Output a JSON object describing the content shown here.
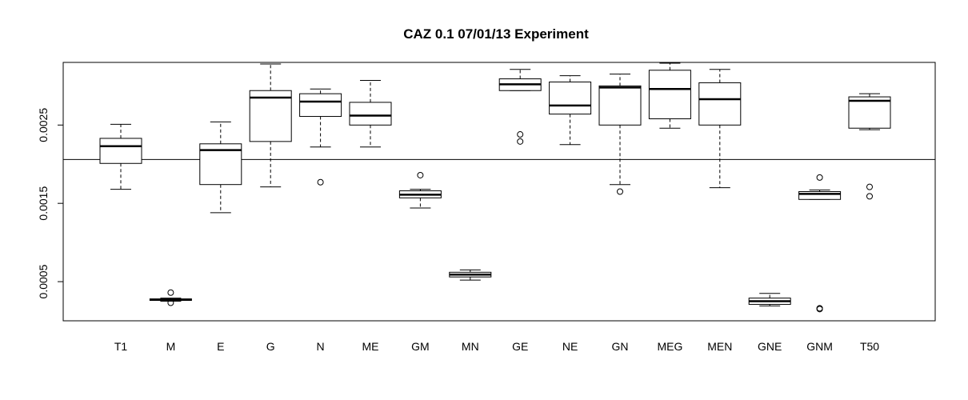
{
  "chart_data": {
    "type": "boxplot",
    "title": "CAZ 0.1 07/01/13 Experiment",
    "xlabel": "",
    "ylabel": "",
    "ylim": [
      0.0,
      0.0033
    ],
    "yticks": [
      0.0005,
      0.0015,
      0.0025
    ],
    "ytick_labels": [
      "0.0005",
      "0.0015",
      "0.0025"
    ],
    "reference_line": 0.00206,
    "categories": [
      "T1",
      "M",
      "E",
      "G",
      "N",
      "ME",
      "GM",
      "MN",
      "GE",
      "NE",
      "GN",
      "MEG",
      "MEN",
      "GNE",
      "GNM",
      "T50"
    ],
    "boxes": [
      {
        "label": "T1",
        "whisker_low": 0.00168,
        "q1": 0.00201,
        "median": 0.00223,
        "q3": 0.00233,
        "whisker_high": 0.00251,
        "outliers": []
      },
      {
        "label": "M",
        "whisker_low": 0.00025,
        "q1": 0.00026,
        "median": 0.00027,
        "q3": 0.00028,
        "whisker_high": 0.00029,
        "outliers": [
          0.00036,
          0.00023
        ]
      },
      {
        "label": "E",
        "whisker_low": 0.00138,
        "q1": 0.00174,
        "median": 0.00218,
        "q3": 0.00226,
        "whisker_high": 0.00254,
        "outliers": []
      },
      {
        "label": "G",
        "whisker_low": 0.00171,
        "q1": 0.00229,
        "median": 0.00285,
        "q3": 0.00294,
        "whisker_high": 0.00328,
        "outliers": []
      },
      {
        "label": "N",
        "whisker_low": 0.00222,
        "q1": 0.00261,
        "median": 0.0028,
        "q3": 0.0029,
        "whisker_high": 0.00296,
        "outliers": [
          0.00177
        ]
      },
      {
        "label": "ME",
        "whisker_low": 0.00222,
        "q1": 0.0025,
        "median": 0.00262,
        "q3": 0.00279,
        "whisker_high": 0.00307,
        "outliers": []
      },
      {
        "label": "GM",
        "whisker_low": 0.00144,
        "q1": 0.00157,
        "median": 0.00161,
        "q3": 0.00166,
        "whisker_high": 0.00168,
        "outliers": [
          0.00186
        ]
      },
      {
        "label": "MN",
        "whisker_low": 0.00052,
        "q1": 0.00056,
        "median": 0.00059,
        "q3": 0.00062,
        "whisker_high": 0.00065,
        "outliers": []
      },
      {
        "label": "GE",
        "whisker_low": 0.00294,
        "q1": 0.00294,
        "median": 0.00302,
        "q3": 0.00309,
        "whisker_high": 0.00321,
        "outliers": [
          0.00238,
          0.00229
        ]
      },
      {
        "label": "NE",
        "whisker_low": 0.00225,
        "q1": 0.00264,
        "median": 0.00275,
        "q3": 0.00305,
        "whisker_high": 0.00313,
        "outliers": []
      },
      {
        "label": "GN",
        "whisker_low": 0.00174,
        "q1": 0.0025,
        "median": 0.00298,
        "q3": 0.003,
        "whisker_high": 0.00315,
        "outliers": [
          0.00165
        ]
      },
      {
        "label": "MEG",
        "whisker_low": 0.00246,
        "q1": 0.00258,
        "median": 0.00296,
        "q3": 0.0032,
        "whisker_high": 0.00329,
        "outliers": []
      },
      {
        "label": "MEN",
        "whisker_low": 0.0017,
        "q1": 0.0025,
        "median": 0.00283,
        "q3": 0.00304,
        "whisker_high": 0.00321,
        "outliers": []
      },
      {
        "label": "GNE",
        "whisker_low": 0.00019,
        "q1": 0.00021,
        "median": 0.00025,
        "q3": 0.00029,
        "whisker_high": 0.00035,
        "outliers": []
      },
      {
        "label": "GNM",
        "whisker_low": 0.00155,
        "q1": 0.00155,
        "median": 0.00162,
        "q3": 0.00165,
        "whisker_high": 0.00167,
        "outliers": [
          0.00183,
          0.00016,
          0.00015
        ]
      },
      {
        "label": "T50",
        "whisker_low": 0.00244,
        "q1": 0.00246,
        "median": 0.00281,
        "q3": 0.00286,
        "whisker_high": 0.0029,
        "outliers": [
          0.00171,
          0.00159
        ]
      }
    ]
  }
}
